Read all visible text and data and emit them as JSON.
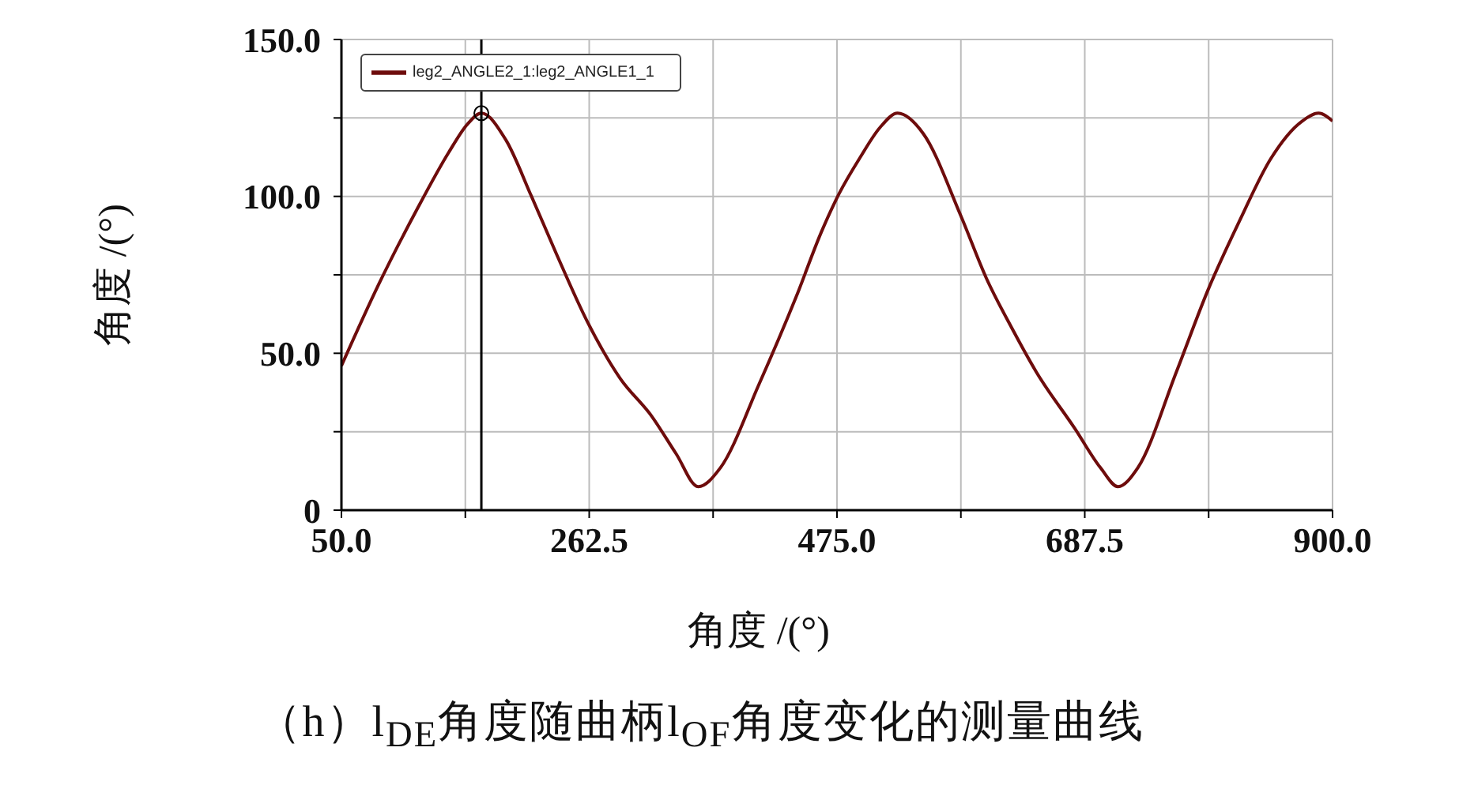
{
  "chart_data": {
    "type": "line",
    "x": [
      50,
      82,
      115,
      142,
      158,
      170,
      191,
      213,
      234,
      261,
      289,
      316,
      337,
      356,
      375,
      408,
      440,
      462,
      477,
      495,
      512,
      527,
      549,
      581,
      603,
      625,
      646,
      679,
      701,
      716,
      733,
      766,
      793,
      820,
      847,
      874,
      888,
      900
    ],
    "series": [
      {
        "name": "leg2_ANGLE2_1:leg2_ANGLE1_1",
        "color": "#6e0c0c",
        "values": [
          46,
          72,
          96,
          114,
          123,
          126.5,
          118,
          100,
          82,
          60,
          42,
          30,
          18,
          7.5,
          13.5,
          40,
          68,
          89,
          101,
          112.5,
          122,
          126.5,
          120,
          94,
          74,
          58,
          44,
          26,
          13.5,
          7.5,
          13.5,
          44,
          70,
          92,
          112,
          124,
          126.5,
          124
        ]
      }
    ],
    "xlabel": "角度 /(°)",
    "ylabel": "角度 /(°)",
    "xlim": [
      50,
      900
    ],
    "xticks": [
      {
        "value": 50,
        "label": "50.0"
      },
      {
        "value": 156.25,
        "label": null
      },
      262.5,
      {
        "value": 368.75,
        "label": null
      },
      {
        "value": 475,
        "label": "475.0"
      },
      {
        "value": 581.25,
        "label": null
      },
      687.5,
      {
        "value": 793.75,
        "label": null
      },
      {
        "value": 900,
        "label": "900.0"
      }
    ],
    "ylim": [
      0,
      150
    ],
    "yticks": [
      0,
      {
        "value": 25,
        "label": null
      },
      {
        "value": 50,
        "label": "50.0"
      },
      {
        "value": 75,
        "label": null
      },
      {
        "value": 100,
        "label": "100.0"
      },
      {
        "value": 125,
        "label": null
      },
      {
        "value": 150,
        "label": "150.0"
      }
    ],
    "grid": true,
    "legend": "top left",
    "ref_lines": [
      {
        "axis": "x",
        "value": 170,
        "color": "#000000"
      }
    ],
    "annotations": [
      "（h）l$_{DE}$角度随曲柄l$_{OF}$角度变化的测量曲线"
    ]
  }
}
